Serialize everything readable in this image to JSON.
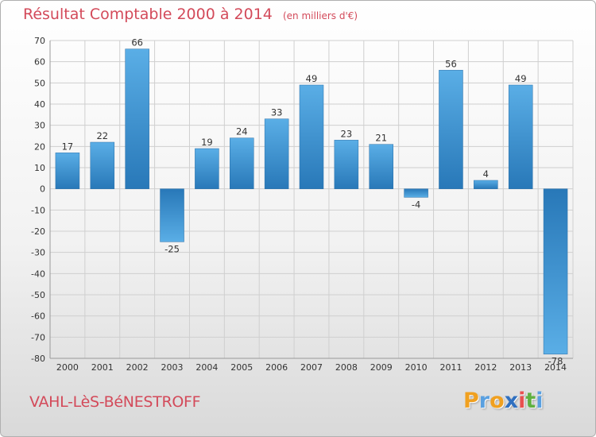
{
  "chart_data": {
    "type": "bar",
    "title": "Résultat Comptable 2000 à 2014",
    "subtitle": "(en milliers d'€)",
    "categories": [
      "2000",
      "2001",
      "2002",
      "2003",
      "2004",
      "2005",
      "2006",
      "2007",
      "2008",
      "2009",
      "2010",
      "2011",
      "2012",
      "2013",
      "2014"
    ],
    "values": [
      17,
      22,
      66,
      -25,
      19,
      24,
      33,
      49,
      23,
      21,
      -4,
      56,
      4,
      49,
      -78
    ],
    "ylim": [
      -80,
      70
    ],
    "yticks": [
      70,
      60,
      50,
      40,
      30,
      20,
      10,
      0,
      -10,
      -20,
      -30,
      -40,
      -50,
      -60,
      -70,
      -80
    ],
    "grid": true,
    "xlabel": "",
    "ylabel": ""
  },
  "footer": {
    "location": "VAHL-LèS-BéNESTROFF",
    "brand": [
      "P",
      "r",
      "o",
      "x",
      "i",
      "t",
      "i"
    ]
  },
  "colors": {
    "bar_top": "#4a9fdc",
    "bar_bottom": "#2878b8",
    "title": "#d34a5a",
    "brand": [
      "#f0a020",
      "#5aa0e0",
      "#f0a020",
      "#3070c0",
      "#e85050",
      "#60b040",
      "#5aa0e0"
    ]
  }
}
